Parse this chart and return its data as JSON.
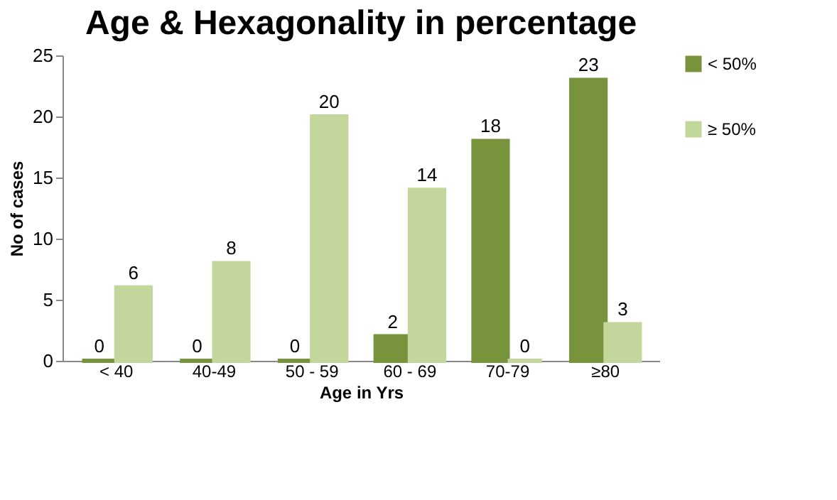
{
  "chart_data": {
    "type": "bar",
    "title": "Age & Hexagonality in percentage",
    "xlabel": "Age in Yrs",
    "ylabel": "No of cases",
    "categories": [
      "< 40",
      "40-49",
      "50 - 59",
      "60 - 69",
      "70-79",
      "≥80"
    ],
    "series": [
      {
        "name": "< 50%",
        "color": "#77933c",
        "values": [
          0,
          0,
          0,
          2,
          18,
          23
        ]
      },
      {
        "name": "≥ 50%",
        "color": "#c3d69b",
        "values": [
          6,
          8,
          20,
          14,
          0,
          3
        ]
      }
    ],
    "ylim": [
      0,
      25
    ],
    "yticks": [
      0,
      5,
      10,
      15,
      20,
      25
    ],
    "grid": false,
    "legend": "right",
    "data_labels": true
  }
}
